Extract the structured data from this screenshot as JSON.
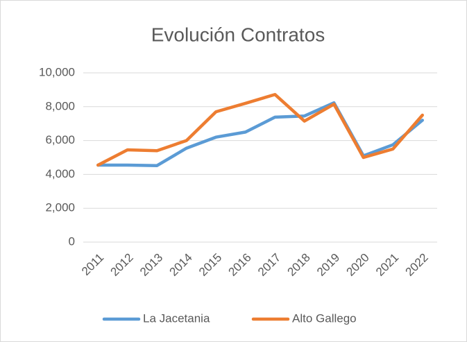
{
  "chart_data": {
    "type": "line",
    "title": "Evolución Contratos",
    "categories": [
      "2011",
      "2012",
      "2013",
      "2014",
      "2015",
      "2016",
      "2017",
      "2018",
      "2019",
      "2020",
      "2021",
      "2022"
    ],
    "series": [
      {
        "name": "La Jacetania",
        "color": "#5b9bd5",
        "values": [
          4550,
          4550,
          4520,
          5550,
          6200,
          6500,
          7380,
          7450,
          8230,
          5100,
          5750,
          7200
        ]
      },
      {
        "name": "Alto Gallego",
        "color": "#ed7d31",
        "values": [
          4550,
          5450,
          5400,
          6000,
          7700,
          8200,
          8720,
          7150,
          8150,
          5000,
          5500,
          7500
        ]
      }
    ],
    "ylim": [
      0,
      10000
    ],
    "yticks": [
      0,
      {
        "value": 2000,
        "label": "2,000"
      },
      {
        "value": 4000,
        "label": "4,000"
      },
      {
        "value": 6000,
        "label": "6,000"
      },
      {
        "value": 8000,
        "label": "8,000"
      },
      {
        "value": 10000,
        "label": "10,000"
      }
    ],
    "grid": true,
    "legend": "bottom"
  }
}
